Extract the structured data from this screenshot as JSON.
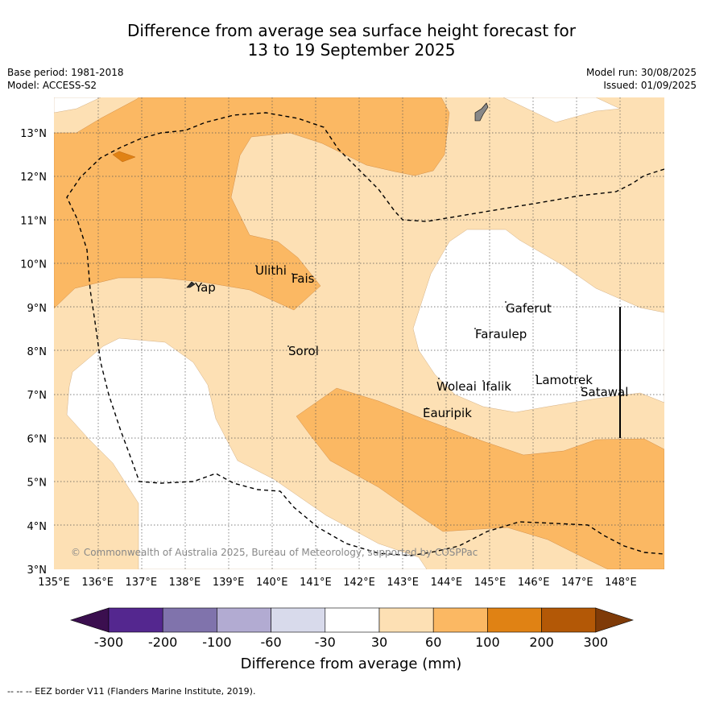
{
  "title_line1": "Difference from average sea surface height forecast for",
  "title_line2": "13 to 19 September 2025",
  "base_period": "Base period: 1981-2018",
  "model": "Model: ACCESS-S2",
  "model_run": "Model run: 30/08/2025",
  "issued": "Issued: 01/09/2025",
  "credit": "© Commonwealth of Australia 2025, Bureau of Meteorology, supported by COSPPac",
  "footnote": "--  --  -- EEZ border V11 (Flanders Marine Institute, 2019).",
  "colorbar_title": "Difference from average (mm)",
  "colorbar_ticks": [
    "-300",
    "-200",
    "-100",
    "-60",
    "-30",
    "30",
    "60",
    "100",
    "200",
    "300"
  ],
  "colorbar_colors": [
    "#3b0f4f",
    "#54278f",
    "#8073ac",
    "#b2abd2",
    "#d8daeb",
    "#ffffff",
    "#fde0b4",
    "#fbb863",
    "#e08214",
    "#b35806",
    "#7f3b08"
  ],
  "x_ticks": [
    "135°E",
    "136°E",
    "137°E",
    "138°E",
    "139°E",
    "140°E",
    "141°E",
    "142°E",
    "143°E",
    "144°E",
    "145°E",
    "146°E",
    "147°E",
    "148°E"
  ],
  "y_ticks": [
    "13°N",
    "12°N",
    "11°N",
    "10°N",
    "9°N",
    "8°N",
    "7°N",
    "6°N",
    "5°N",
    "4°N",
    "3°N"
  ],
  "places": {
    "yap": "Yap",
    "ulithi": "Ulithi",
    "fais": "Fais",
    "sorol": "Sorol",
    "gaferut": "Gaferut",
    "faraulep": "Faraulep",
    "woleai": "Woleai",
    "ifalik": "Ifalik",
    "lamotrek": "Lamotrek",
    "satawal": "Satawal",
    "eauripik": "Eauripik"
  }
}
